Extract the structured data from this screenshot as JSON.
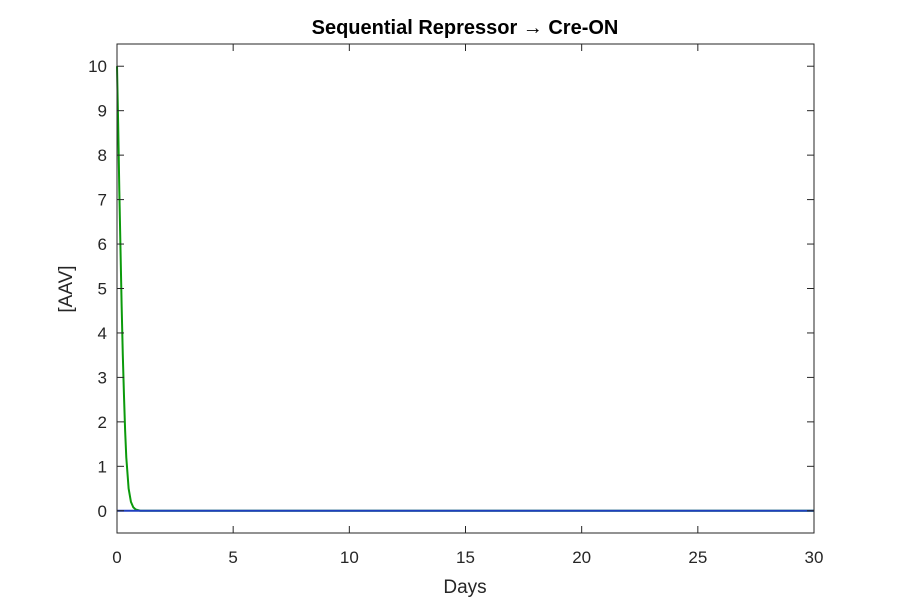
{
  "chart_data": {
    "type": "line",
    "title": "Sequential Repressor → Cre-ON",
    "xlabel": "Days",
    "ylabel": "[AAV]",
    "xlim": [
      0,
      30
    ],
    "ylim": [
      -0.5,
      10.5
    ],
    "xticks": [
      0,
      5,
      10,
      15,
      20,
      25,
      30
    ],
    "yticks": [
      0,
      1,
      2,
      3,
      4,
      5,
      6,
      7,
      8,
      9,
      10
    ],
    "grid": false,
    "legend": "none",
    "series": [
      {
        "color": "#0b9a0b",
        "x": [
          0,
          0.05,
          0.1,
          0.15,
          0.2,
          0.25,
          0.3,
          0.35,
          0.4,
          0.5,
          0.6,
          0.7,
          0.8,
          1.0,
          30
        ],
        "y": [
          10,
          8.7,
          7.2,
          5.9,
          4.6,
          3.5,
          2.6,
          1.8,
          1.2,
          0.5,
          0.2,
          0.08,
          0.03,
          0,
          0
        ]
      },
      {
        "color": "#1f3fbf",
        "x": [
          0,
          30
        ],
        "y": [
          0,
          0
        ]
      }
    ]
  }
}
